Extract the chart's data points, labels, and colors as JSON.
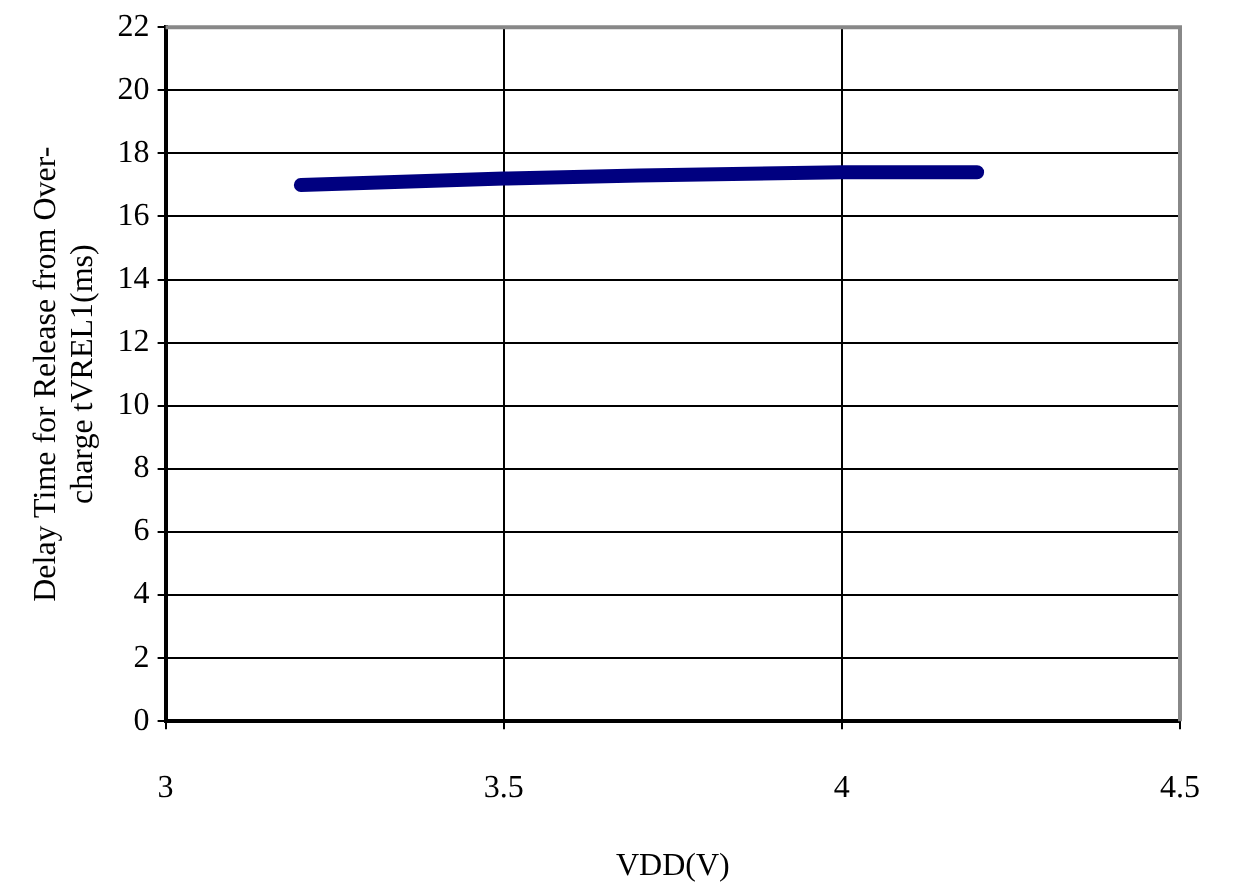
{
  "chart_data": {
    "type": "line",
    "xlabel": "VDD(V)",
    "ylabel": "Delay Time for Release from Over-\ncharge tVREL1(ms)",
    "x": [
      3.2,
      3.5,
      3.7,
      4.0,
      4.2
    ],
    "series": [
      {
        "color": "#000080",
        "values": [
          17.0,
          17.2,
          17.3,
          17.4,
          17.4
        ]
      }
    ],
    "xlim": [
      3,
      4.5
    ],
    "xticks": [
      3,
      3.5,
      4,
      4.5
    ],
    "ylim": [
      0,
      22
    ],
    "yticks": [
      0,
      2,
      4,
      6,
      8,
      10,
      12,
      14,
      16,
      18,
      20,
      22
    ],
    "grid": true,
    "legend": false,
    "marker": "none",
    "line_style": "solid"
  }
}
